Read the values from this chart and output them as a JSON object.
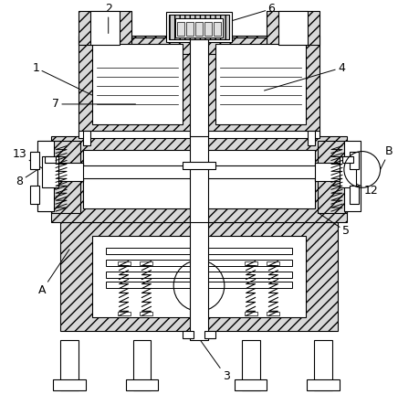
{
  "bg_color": "#ffffff",
  "line_color": "#000000",
  "figsize": [
    4.36,
    4.43
  ],
  "dpi": 100,
  "hatch": "///",
  "hatch_color": "#aaaaaa"
}
